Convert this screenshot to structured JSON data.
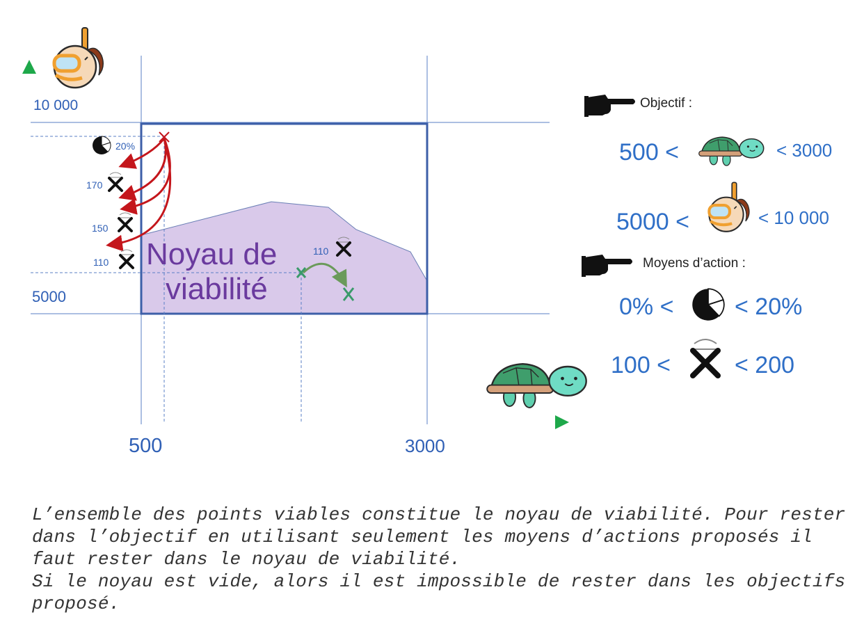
{
  "axes": {
    "y_top_label": "10 000",
    "y_mid_label": "5000",
    "x_left_label": "500",
    "x_right_label": "3000"
  },
  "kernel": {
    "line1": "Noyau de",
    "line2": "viabilité"
  },
  "points": {
    "pie_label": "20%",
    "net_labels": [
      "170",
      "150",
      "110"
    ],
    "inner_label": "110"
  },
  "legend": {
    "objective_title": "Objectif :",
    "turtle_low": "500 <",
    "turtle_high": "< 3000",
    "diver_low": "5000 <",
    "diver_high": "< 10 000",
    "means_title": "Moyens d’action :",
    "pie_low": "0% <",
    "pie_high": "< 20%",
    "net_low": "100 <",
    "net_high": "< 200"
  },
  "caption": [
    "L’ensemble des points viables constitue le noyau de viabilité. Pour rester dans l’objectif en utilisant seulement les moyens d’actions proposés il faut rester dans le noyau de viabilité.",
    "Si le noyau est vide, alors il est impossible de rester dans les objectifs proposé."
  ],
  "icons": [
    "diver-icon",
    "turtle-icon",
    "pie-icon",
    "net-icon",
    "pointing-hand-icon"
  ]
}
